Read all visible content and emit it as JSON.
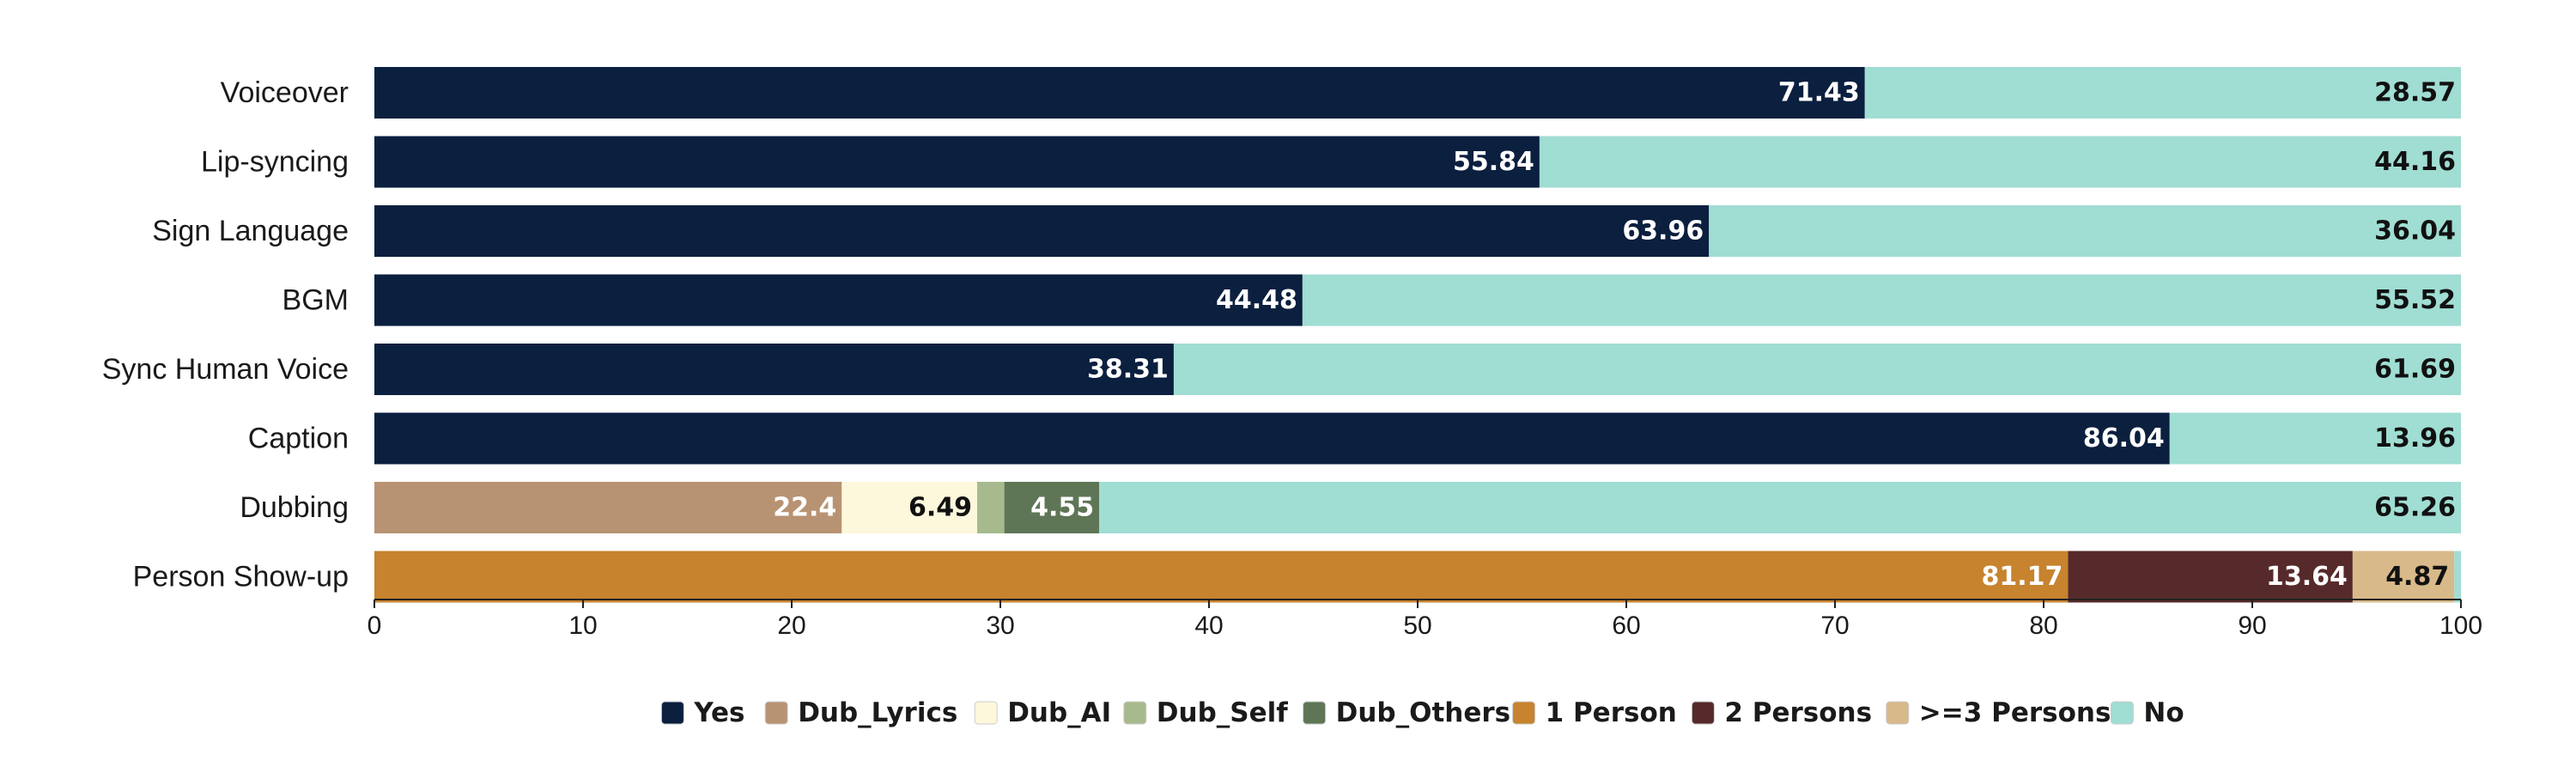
{
  "chart_data": {
    "type": "bar",
    "orientation": "horizontal",
    "stacked": true,
    "xlim": [
      0,
      100
    ],
    "xticks": [
      0,
      10,
      20,
      30,
      40,
      50,
      60,
      70,
      80,
      90,
      100
    ],
    "grid": false,
    "legend_position": "bottom",
    "categories": [
      "Voiceover",
      "Lip-syncing",
      "Sign Language",
      "BGM",
      "Sync Human Voice",
      "Caption",
      "Dubbing",
      "Person Show-up"
    ],
    "series_colors": {
      "Yes": "#0b1f3f",
      "Dub_Lyrics": "#b89373",
      "Dub_AI": "#fdf7dc",
      "Dub_Self": "#a7ba8d",
      "Dub_Others": "#5e7656",
      "1 Person": "#c7832e",
      "2 Persons": "#562a2b",
      ">=3 Persons": "#d8b98a",
      "No": "#a0ddd3"
    },
    "legend": [
      "Yes",
      "Dub_Lyrics",
      "Dub_AI",
      "Dub_Self",
      "Dub_Others",
      "1 Person",
      "2 Persons",
      ">=3 Persons",
      "No"
    ],
    "rows": [
      {
        "category": "Voiceover",
        "segments": [
          {
            "series": "Yes",
            "value": 71.43,
            "label": "71.43"
          },
          {
            "series": "No",
            "value": 28.57,
            "label": "28.57"
          }
        ]
      },
      {
        "category": "Lip-syncing",
        "segments": [
          {
            "series": "Yes",
            "value": 55.84,
            "label": "55.84"
          },
          {
            "series": "No",
            "value": 44.16,
            "label": "44.16"
          }
        ]
      },
      {
        "category": "Sign Language",
        "segments": [
          {
            "series": "Yes",
            "value": 63.96,
            "label": "63.96"
          },
          {
            "series": "No",
            "value": 36.04,
            "label": "36.04"
          }
        ]
      },
      {
        "category": "BGM",
        "segments": [
          {
            "series": "Yes",
            "value": 44.48,
            "label": "44.48"
          },
          {
            "series": "No",
            "value": 55.52,
            "label": "55.52"
          }
        ]
      },
      {
        "category": "Sync Human Voice",
        "segments": [
          {
            "series": "Yes",
            "value": 38.31,
            "label": "38.31"
          },
          {
            "series": "No",
            "value": 61.69,
            "label": "61.69"
          }
        ]
      },
      {
        "category": "Caption",
        "segments": [
          {
            "series": "Yes",
            "value": 86.04,
            "label": "86.04"
          },
          {
            "series": "No",
            "value": 13.96,
            "label": "13.96"
          }
        ]
      },
      {
        "category": "Dubbing",
        "segments": [
          {
            "series": "Dub_Lyrics",
            "value": 22.4,
            "label": "22.4"
          },
          {
            "series": "Dub_AI",
            "value": 6.49,
            "label": "6.49"
          },
          {
            "series": "Dub_Self",
            "value": 1.3,
            "label": ""
          },
          {
            "series": "Dub_Others",
            "value": 4.55,
            "label": "4.55"
          },
          {
            "series": "No",
            "value": 65.26,
            "label": "65.26"
          }
        ]
      },
      {
        "category": "Person Show-up",
        "segments": [
          {
            "series": "1 Person",
            "value": 81.17,
            "label": "81.17"
          },
          {
            "series": "2 Persons",
            "value": 13.64,
            "label": "13.64"
          },
          {
            "series": ">=3 Persons",
            "value": 4.87,
            "label": "4.87"
          },
          {
            "series": "No",
            "value": 0.32,
            "label": ""
          }
        ]
      }
    ]
  }
}
